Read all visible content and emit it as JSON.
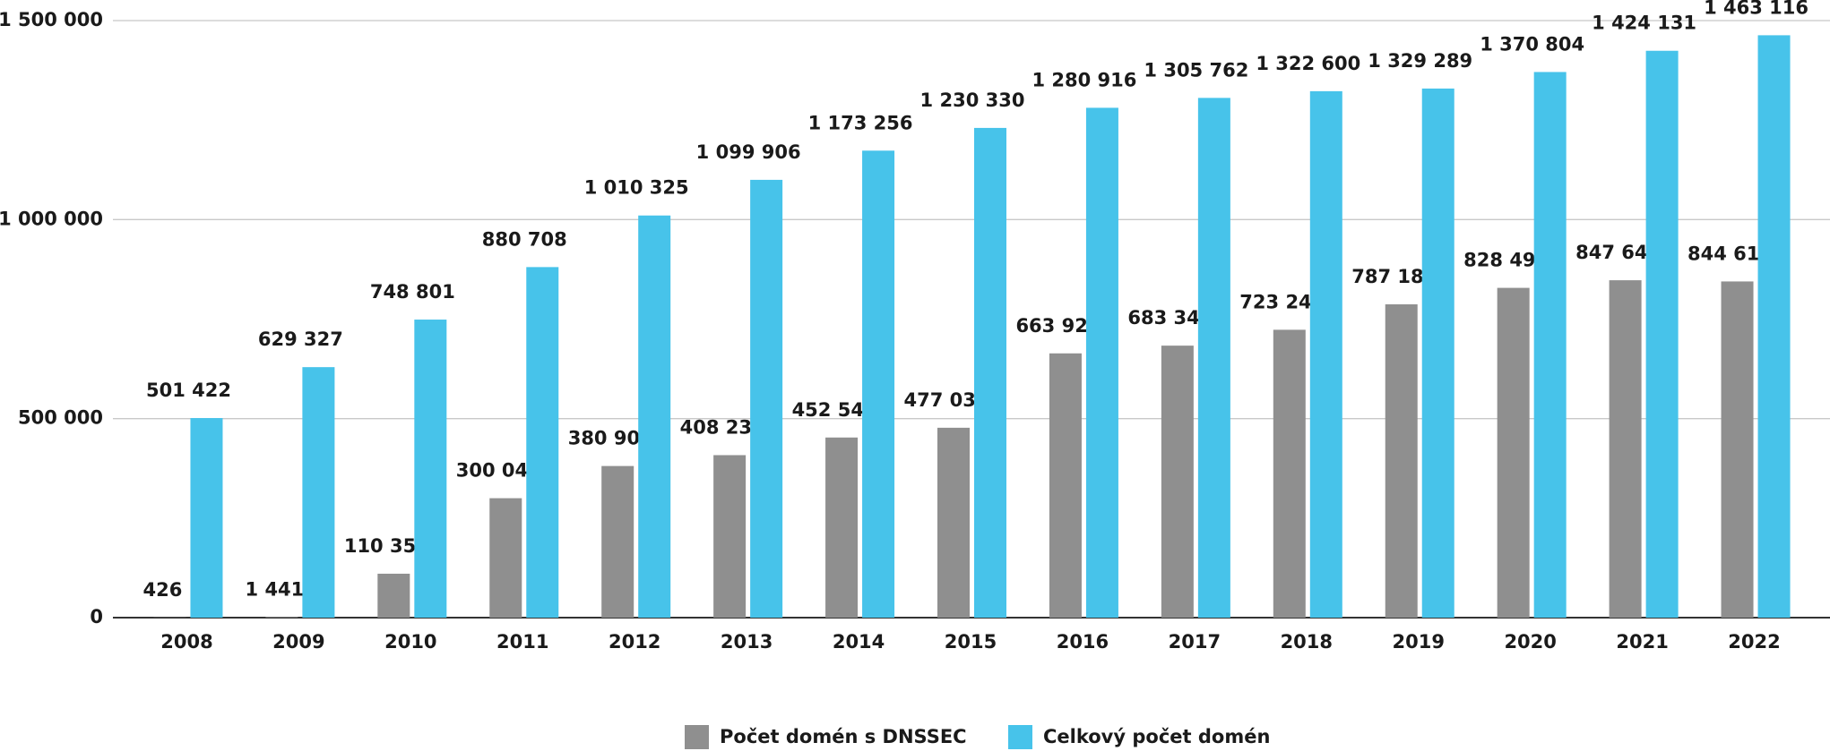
{
  "chart_data": {
    "type": "bar",
    "categories": [
      "2008",
      "2009",
      "2010",
      "2011",
      "2012",
      "2013",
      "2014",
      "2015",
      "2016",
      "2017",
      "2018",
      "2019",
      "2020",
      "2021",
      "2022"
    ],
    "series": [
      {
        "name": "Počet domén s DNSSEC",
        "color": "#8f8f8f",
        "values": [
          426,
          1441,
          110356,
          300041,
          380902,
          408238,
          452540,
          477037,
          663920,
          683342,
          723248,
          787187,
          828499,
          847646,
          844615
        ],
        "value_labels": [
          "426",
          "1 441",
          "110 356",
          "300 041",
          "380 902",
          "408 238",
          "452 540",
          "477 037",
          "663 920",
          "683 342",
          "723 248",
          "787 187",
          "828 499",
          "847 646",
          "844 615"
        ]
      },
      {
        "name": "Celkový počet domén",
        "color": "#47c3ea",
        "values": [
          501422,
          629327,
          748801,
          880708,
          1010325,
          1099906,
          1173256,
          1230330,
          1280916,
          1305762,
          1322600,
          1329289,
          1370804,
          1424131,
          1463116
        ],
        "value_labels": [
          "501 422",
          "629 327",
          "748 801",
          "880 708",
          "1 010 325",
          "1 099 906",
          "1 173 256",
          "1 230 330",
          "1 280 916",
          "1 305 762",
          "1 322 600",
          "1 329 289",
          "1 370 804",
          "1 424 131",
          "1 463 116"
        ]
      }
    ],
    "ylim": [
      0,
      1500000
    ],
    "yticks": [
      0,
      {
        "value": 500000,
        "label": "500 000"
      },
      {
        "value": 1000000,
        "label": "1 000 000"
      },
      {
        "value": 1500000,
        "label": "1 500 000"
      }
    ],
    "grid": true,
    "legend": "bottom"
  }
}
